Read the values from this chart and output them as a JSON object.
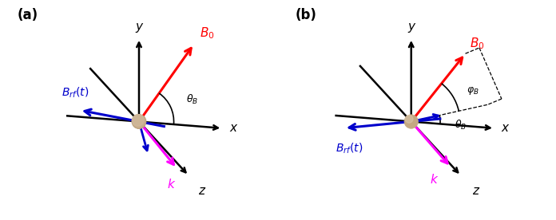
{
  "fig_width": 6.96,
  "fig_height": 2.76,
  "dpi": 100,
  "background": "#ffffff",
  "panel_a": {
    "label": "(a)",
    "B0_color": "#ff0000",
    "Brf_color": "#0000cc",
    "k_color": "#ff00ff",
    "axis_color": "#000000",
    "sphere_color": "#c4a882",
    "sphere_r": 0.06,
    "B0_label": "$B_0$",
    "Brf_label": "$B_{rf}(t)$",
    "k_label": "$k$",
    "theta_label": "$\\theta_B$",
    "x_label": "x",
    "y_label": "y",
    "z_label": "z"
  },
  "panel_b": {
    "label": "(b)",
    "B0_color": "#ff0000",
    "Brf_color": "#0000cc",
    "k_color": "#ff00ff",
    "axis_color": "#000000",
    "sphere_color": "#c4a882",
    "sphere_r": 0.06,
    "B0_label": "$B_0$",
    "Brf_label": "$B_{rf}(t)$",
    "k_label": "$k$",
    "theta_label": "$\\theta_B$",
    "phi_label": "$\\varphi_B$",
    "x_label": "x",
    "y_label": "y",
    "z_label": "z"
  }
}
